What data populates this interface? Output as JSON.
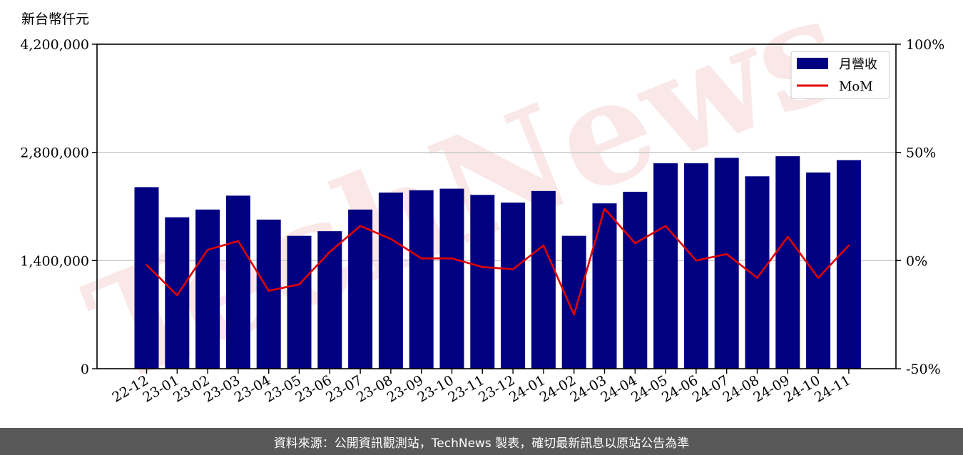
{
  "chart_data": {
    "type": "bar",
    "units_label": "新台幣仟元",
    "categories": [
      "22-12",
      "23-01",
      "23-02",
      "23-03",
      "23-04",
      "23-05",
      "23-06",
      "23-07",
      "23-08",
      "23-09",
      "23-10",
      "23-11",
      "23-12",
      "24-01",
      "24-02",
      "24-03",
      "24-04",
      "24-05",
      "24-06",
      "24-07",
      "24-08",
      "24-09",
      "24-10",
      "24-11"
    ],
    "series": [
      {
        "name": "月營收",
        "type": "bar",
        "axis": "left",
        "values": [
          2350000,
          1960000,
          2060000,
          2240000,
          1930000,
          1720000,
          1780000,
          2060000,
          2280000,
          2310000,
          2330000,
          2250000,
          2150000,
          2300000,
          1720000,
          2140000,
          2290000,
          2660000,
          2660000,
          2730000,
          2490000,
          2750000,
          2540000,
          2700000
        ]
      },
      {
        "name": "MoM",
        "type": "line",
        "axis": "right",
        "values": [
          -2,
          -16,
          5,
          9,
          -14,
          -11,
          4,
          16,
          10,
          1,
          1,
          -3,
          -4,
          7,
          -25,
          24,
          8,
          16,
          0,
          3,
          -8,
          11,
          -8,
          7
        ]
      }
    ],
    "left_axis": {
      "ylim": [
        0,
        4200000
      ],
      "ticks": [
        "0",
        "1,400,000",
        "2,800,000",
        "4,200,000"
      ]
    },
    "right_axis": {
      "ylim": [
        -50,
        100
      ],
      "ticks": [
        "-50%",
        "0%",
        "50%",
        "100%"
      ]
    },
    "grid": "horizontal",
    "legend": "top-right",
    "watermark": "TechNews",
    "colors": {
      "bar": "#000080",
      "line": "#e00000",
      "grid": "#cccccc"
    }
  },
  "footer": {
    "text": "資料來源：公開資訊觀測站，TechNews 製表，確切最新訊息以原站公告為準"
  }
}
